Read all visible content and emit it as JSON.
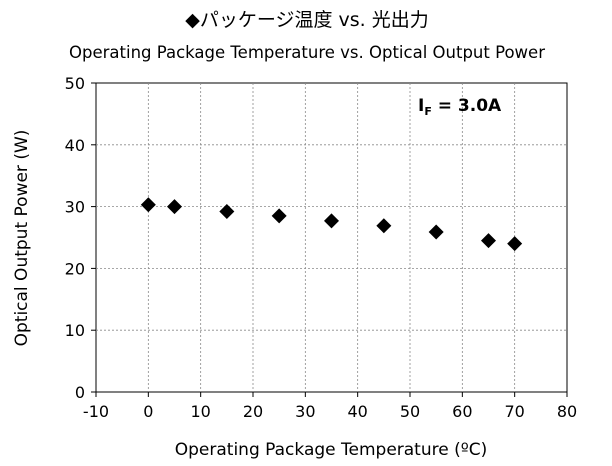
{
  "chart_data": {
    "type": "scatter",
    "title": "◆パッケージ温度 vs. 光出力",
    "subtitle": "Operating Package Temperature vs. Optical Output Power",
    "xlabel": "Operating Package Temperature (ºC)",
    "ylabel": "Optical Output Power (W)",
    "xlim": [
      -10,
      80
    ],
    "ylim": [
      0,
      50
    ],
    "xticks": [
      -10,
      0,
      10,
      20,
      30,
      40,
      50,
      60,
      70,
      80
    ],
    "yticks": [
      0,
      10,
      20,
      30,
      40,
      50
    ],
    "grid": true,
    "annotation": {
      "label_main": "I",
      "label_sub": "F",
      "label_rest": " = 3.0A"
    },
    "marker": "diamond",
    "color": "#000000",
    "series": [
      {
        "x": [
          0,
          5,
          15,
          25,
          35,
          45,
          55,
          65,
          70
        ],
        "y": [
          30.3,
          30.0,
          29.2,
          28.5,
          27.7,
          26.9,
          25.9,
          24.5,
          24.0
        ]
      }
    ]
  }
}
